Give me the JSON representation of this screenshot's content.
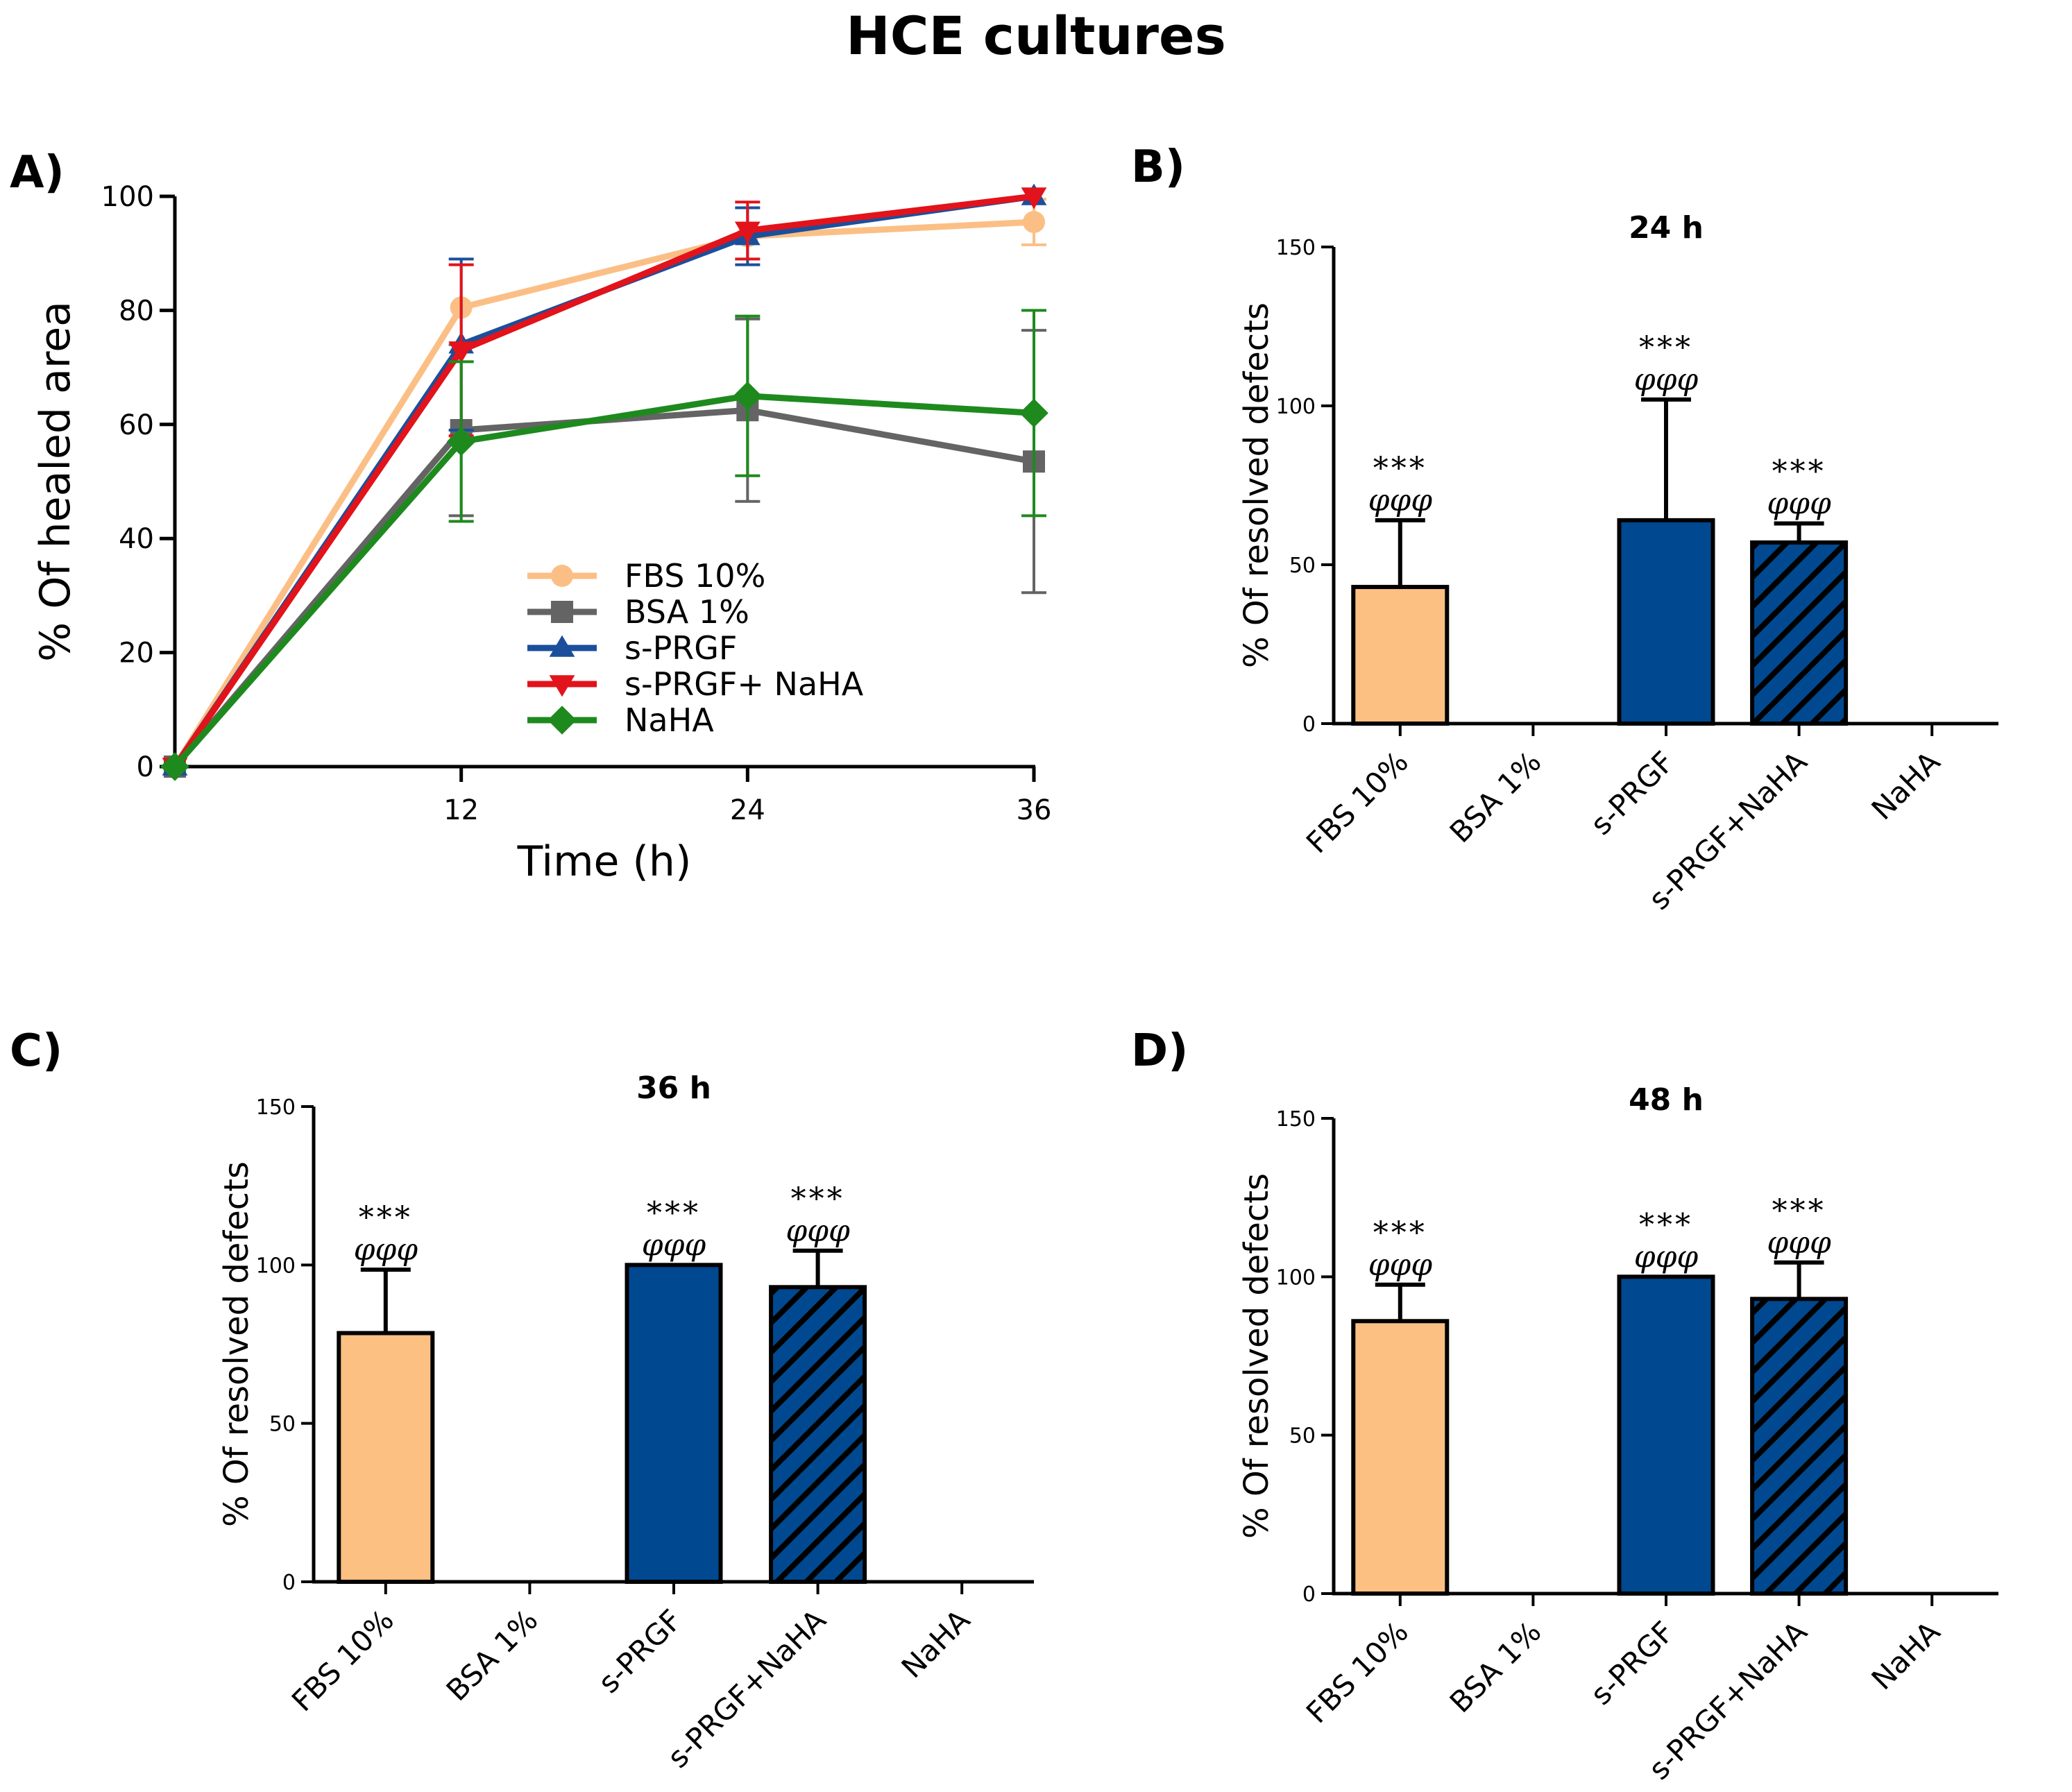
{
  "figure": {
    "title": "HCE cultures"
  },
  "chart_data": [
    {
      "panel": "A)",
      "type": "line",
      "title": "",
      "xlabel": "Time (h)",
      "ylabel": "% Of healed area",
      "xlim": [
        0,
        36
      ],
      "ylim": [
        0,
        100
      ],
      "xticks": [
        12,
        24,
        36
      ],
      "yticks": [
        0,
        20,
        40,
        60,
        80,
        100
      ],
      "legend_position": "center",
      "series": [
        {
          "name": "FBS 10%",
          "color": "#FBBF85",
          "marker": "circle",
          "x": [
            0,
            12,
            24,
            36
          ],
          "y": [
            0,
            80.5,
            93,
            95.5
          ],
          "err": [
            0,
            0,
            0,
            4
          ]
        },
        {
          "name": "BSA 1%",
          "color": "#646464",
          "marker": "square",
          "x": [
            0,
            12,
            24,
            36
          ],
          "y": [
            0,
            59,
            62.5,
            53.5
          ],
          "err": [
            0,
            15,
            16,
            23
          ]
        },
        {
          "name": "s-PRGF",
          "color": "#1B4F9C",
          "marker": "triangle-up",
          "x": [
            0,
            12,
            24,
            36
          ],
          "y": [
            0,
            74,
            93,
            100
          ],
          "err": [
            0,
            15,
            5,
            0
          ]
        },
        {
          "name": "s-PRGF+ NaHA",
          "color": "#E2131A",
          "marker": "triangle-down",
          "x": [
            0,
            12,
            24,
            36
          ],
          "y": [
            0,
            73,
            94,
            100
          ],
          "err": [
            0,
            15,
            5,
            0
          ]
        },
        {
          "name": "NaHA",
          "color": "#1E8A1E",
          "marker": "diamond",
          "x": [
            0,
            12,
            24,
            36
          ],
          "y": [
            0,
            57,
            65,
            62
          ],
          "err": [
            0,
            14,
            14,
            18
          ]
        }
      ]
    },
    {
      "panel": "B)",
      "type": "bar",
      "title": "24 h",
      "xlabel": "",
      "ylabel": "% Of resolved defects",
      "ylim": [
        0,
        150
      ],
      "yticks": [
        0,
        50,
        100,
        150
      ],
      "categories": [
        "FBS 10%",
        "BSA 1%",
        "s-PRGF",
        "s-PRGF+NaHA",
        "NaHA"
      ],
      "values": [
        43,
        0,
        64,
        57,
        0
      ],
      "errors": [
        21,
        0,
        38,
        6,
        0
      ],
      "fills": [
        "orange",
        "none",
        "blue",
        "hatched",
        "none"
      ],
      "significance": [
        {
          "stars": "***",
          "phi": "φφφ"
        },
        null,
        {
          "stars": "***",
          "phi": "φφφ"
        },
        {
          "stars": "***",
          "phi": "φφφ"
        },
        null
      ]
    },
    {
      "panel": "C)",
      "type": "bar",
      "title": "36 h",
      "xlabel": "",
      "ylabel": "% Of resolved defects",
      "ylim": [
        0,
        150
      ],
      "yticks": [
        0,
        50,
        100,
        150
      ],
      "categories": [
        "FBS 10%",
        "BSA 1%",
        "s-PRGF",
        "s-PRGF+NaHA",
        "NaHA"
      ],
      "values": [
        78.5,
        0,
        100,
        93,
        0
      ],
      "errors": [
        20,
        0,
        0,
        11.5,
        0
      ],
      "fills": [
        "orange",
        "none",
        "blue",
        "hatched",
        "none"
      ],
      "significance": [
        {
          "stars": "***",
          "phi": "φφφ"
        },
        null,
        {
          "stars": "***",
          "phi": "φφφ"
        },
        {
          "stars": "***",
          "phi": "φφφ"
        },
        null
      ]
    },
    {
      "panel": "D)",
      "type": "bar",
      "title": "48 h",
      "xlabel": "",
      "ylabel": "% Of resolved defects",
      "ylim": [
        0,
        150
      ],
      "yticks": [
        0,
        50,
        100,
        150
      ],
      "categories": [
        "FBS 10%",
        "BSA 1%",
        "s-PRGF",
        "s-PRGF+NaHA",
        "NaHA"
      ],
      "values": [
        86,
        0,
        100,
        93,
        0
      ],
      "errors": [
        11.5,
        0,
        0,
        11.5,
        0
      ],
      "fills": [
        "orange",
        "none",
        "blue",
        "hatched",
        "none"
      ],
      "significance": [
        {
          "stars": "***",
          "phi": "φφφ"
        },
        null,
        {
          "stars": "***",
          "phi": "φφφ"
        },
        {
          "stars": "***",
          "phi": "φφφ"
        },
        null
      ]
    }
  ],
  "colors": {
    "orange": "#FDC083",
    "blue": "#004990",
    "axis": "#000000"
  }
}
